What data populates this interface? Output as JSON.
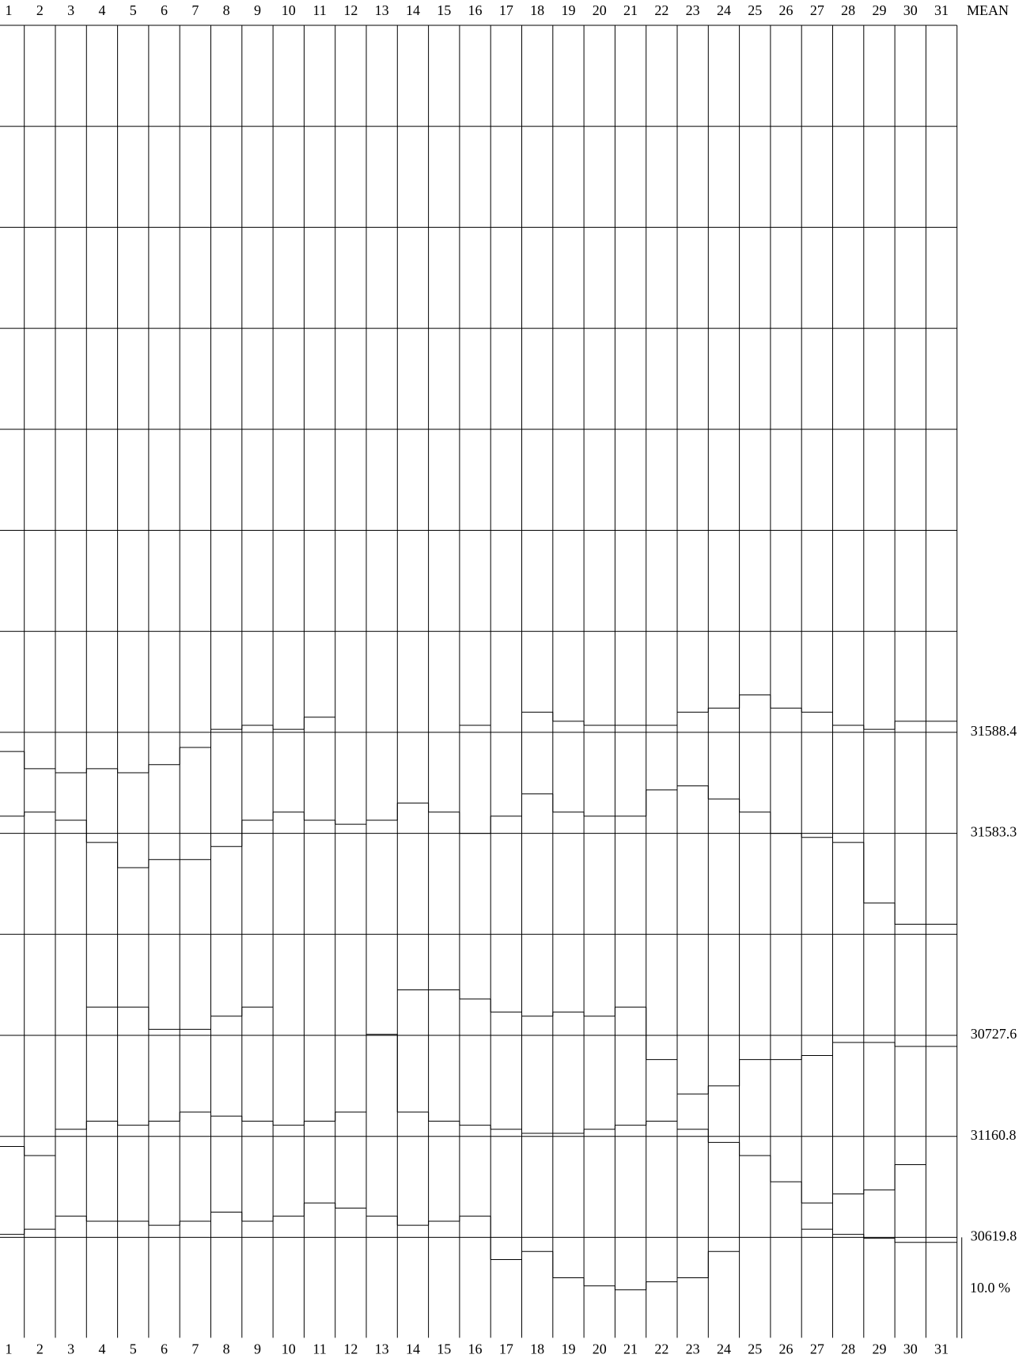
{
  "chart_data": {
    "type": "step",
    "x": [
      1,
      2,
      3,
      4,
      5,
      6,
      7,
      8,
      9,
      10,
      11,
      12,
      13,
      14,
      15,
      16,
      17,
      18,
      19,
      20,
      21,
      22,
      23,
      24,
      25,
      26,
      27,
      28,
      29,
      30,
      31
    ],
    "mean_header": "MEAN",
    "scale_bar": {
      "value": 10,
      "label": "10.0 %"
    },
    "color": "#000000",
    "series": [
      {
        "mean": 31588.4,
        "values": [
          -1.9,
          -3.6,
          -4.0,
          -3.6,
          -4.0,
          -3.2,
          -1.5,
          0.3,
          0.7,
          0.3,
          1.5,
          null,
          null,
          null,
          null,
          0.7,
          null,
          2.0,
          1.1,
          0.7,
          0.7,
          0.7,
          2.0,
          2.4,
          3.7,
          2.4,
          2.0,
          0.7,
          0.3,
          1.1,
          1.1
        ]
      },
      {
        "mean": 31583.3,
        "values": [
          1.7,
          2.1,
          1.3,
          -0.9,
          -3.4,
          -2.6,
          -2.6,
          -1.3,
          1.3,
          2.1,
          1.3,
          0.9,
          1.3,
          3.0,
          2.1,
          0.0,
          1.7,
          3.9,
          2.1,
          1.7,
          1.7,
          4.3,
          4.7,
          3.4,
          2.1,
          0.0,
          -0.4,
          -0.9,
          -6.9,
          -9.0,
          -9.0
        ]
      },
      {
        "mean": 30727.6,
        "values": [
          null,
          null,
          null,
          2.8,
          2.8,
          0.6,
          0.6,
          1.9,
          2.8,
          null,
          null,
          null,
          null,
          4.5,
          4.5,
          3.6,
          2.3,
          1.9,
          2.3,
          1.9,
          2.8,
          -2.4,
          -5.8,
          -5.0,
          -2.4,
          -2.4,
          -2.0,
          -0.7,
          -0.7,
          -1.1,
          -1.1
        ]
      },
      {
        "mean": 31160.8,
        "values": [
          -1.0,
          -1.9,
          0.7,
          1.5,
          1.1,
          1.5,
          2.4,
          2.0,
          1.5,
          1.1,
          1.5,
          2.4,
          10.1,
          2.4,
          1.5,
          1.1,
          0.7,
          0.3,
          0.3,
          0.7,
          1.1,
          1.5,
          0.7,
          -0.6,
          -1.9,
          -4.5,
          -6.6,
          -5.7,
          -5.3,
          -2.8,
          null
        ]
      },
      {
        "mean": 30619.8,
        "values": [
          0.3,
          0.8,
          2.1,
          1.6,
          1.6,
          1.2,
          1.6,
          2.5,
          1.6,
          2.1,
          3.4,
          2.9,
          2.1,
          1.2,
          1.6,
          2.1,
          -2.2,
          -1.4,
          -4.0,
          -4.8,
          -5.2,
          -4.4,
          -4.0,
          -1.4,
          null,
          null,
          0.8,
          0.3,
          -0.1,
          -0.5,
          -0.5
        ]
      }
    ]
  }
}
